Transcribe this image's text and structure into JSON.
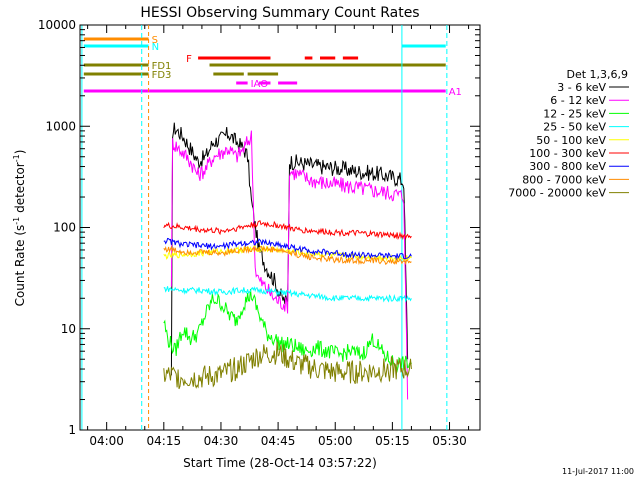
{
  "chart_data": {
    "type": "line",
    "title": "HESSI Observing Summary Count Rates",
    "xlabel": "Start Time (28-Oct-14 03:57:22)",
    "ylabel": "Count Rate (s",
    "ylabel_sup1": "-1",
    "ylabel_mid": " detector",
    "ylabel_sup2": "-1",
    "ylabel_end": ")",
    "footer_date": "11-Jul-2017 11:00",
    "x_unit": "minutes after 04:00",
    "xlim": [
      -7,
      98
    ],
    "ylim": [
      1,
      10000
    ],
    "yscale": "log",
    "xticks": [
      {
        "t": 0,
        "label": "04:00"
      },
      {
        "t": 15,
        "label": "04:15"
      },
      {
        "t": 30,
        "label": "04:30"
      },
      {
        "t": 45,
        "label": "04:45"
      },
      {
        "t": 60,
        "label": "05:00"
      },
      {
        "t": 75,
        "label": "05:15"
      },
      {
        "t": 90,
        "label": "05:30"
      }
    ],
    "yticks": [
      {
        "v": 1,
        "label": "1"
      },
      {
        "v": 10,
        "label": "10"
      },
      {
        "v": 100,
        "label": "100"
      },
      {
        "v": 1000,
        "label": "1000"
      },
      {
        "v": 10000,
        "label": "10000"
      }
    ],
    "legend_title": "Det 1,3,6,9",
    "legend_placement": "right",
    "series": [
      {
        "name": "3 - 6 keV",
        "color": "#000000",
        "points": [
          [
            17,
            3
          ],
          [
            17.3,
            900
          ],
          [
            18,
            950
          ],
          [
            20,
            800
          ],
          [
            22,
            600
          ],
          [
            24,
            450
          ],
          [
            26,
            500
          ],
          [
            28,
            700
          ],
          [
            30,
            750
          ],
          [
            32,
            850
          ],
          [
            34,
            700
          ],
          [
            36,
            600
          ],
          [
            37,
            500
          ],
          [
            38,
            180
          ],
          [
            40,
            60
          ],
          [
            42,
            40
          ],
          [
            44,
            30
          ],
          [
            46,
            20
          ],
          [
            47.5,
            18
          ],
          [
            48,
            450
          ],
          [
            50,
            440
          ],
          [
            53,
            420
          ],
          [
            56,
            400
          ],
          [
            59,
            390
          ],
          [
            62,
            380
          ],
          [
            65,
            360
          ],
          [
            68,
            350
          ],
          [
            71,
            340
          ],
          [
            74,
            320
          ],
          [
            77,
            300
          ],
          [
            78,
            280
          ],
          [
            79,
            5
          ]
        ]
      },
      {
        "name": "6 - 12 keV",
        "color": "#ff00ff",
        "points": [
          [
            17,
            30
          ],
          [
            17.3,
            700
          ],
          [
            18,
            650
          ],
          [
            20,
            550
          ],
          [
            22,
            450
          ],
          [
            24,
            330
          ],
          [
            26,
            380
          ],
          [
            28,
            500
          ],
          [
            30,
            550
          ],
          [
            32,
            600
          ],
          [
            34,
            500
          ],
          [
            36,
            600
          ],
          [
            37,
            700
          ],
          [
            38,
            800
          ],
          [
            39,
            40
          ],
          [
            40,
            30
          ],
          [
            42,
            25
          ],
          [
            44,
            20
          ],
          [
            46,
            18
          ],
          [
            47.5,
            17
          ],
          [
            48,
            360
          ],
          [
            50,
            340
          ],
          [
            53,
            300
          ],
          [
            56,
            280
          ],
          [
            59,
            270
          ],
          [
            62,
            260
          ],
          [
            65,
            250
          ],
          [
            68,
            240
          ],
          [
            71,
            230
          ],
          [
            74,
            220
          ],
          [
            77,
            210
          ],
          [
            78,
            200
          ],
          [
            79,
            2
          ]
        ]
      },
      {
        "name": "12 - 25 keV",
        "color": "#00ff00",
        "points": [
          [
            15,
            12
          ],
          [
            16,
            8
          ],
          [
            18,
            6
          ],
          [
            20,
            10
          ],
          [
            22,
            8
          ],
          [
            24,
            9
          ],
          [
            26,
            14
          ],
          [
            28,
            20
          ],
          [
            30,
            18
          ],
          [
            32,
            14
          ],
          [
            34,
            12
          ],
          [
            36,
            18
          ],
          [
            38,
            22
          ],
          [
            40,
            14
          ],
          [
            42,
            9
          ],
          [
            44,
            8
          ],
          [
            46,
            7
          ],
          [
            48,
            7
          ],
          [
            50,
            6.5
          ],
          [
            52,
            6
          ],
          [
            55,
            6.5
          ],
          [
            58,
            6
          ],
          [
            61,
            5.5
          ],
          [
            64,
            6
          ],
          [
            67,
            5.5
          ],
          [
            70,
            8
          ],
          [
            72,
            6
          ],
          [
            74,
            5
          ],
          [
            76,
            4.5
          ],
          [
            78,
            4.5
          ],
          [
            80,
            4.5
          ]
        ]
      },
      {
        "name": "25 - 50 keV",
        "color": "#00ffff",
        "points": [
          [
            15,
            25
          ],
          [
            20,
            24
          ],
          [
            25,
            24
          ],
          [
            30,
            23
          ],
          [
            35,
            24
          ],
          [
            40,
            24
          ],
          [
            45,
            23
          ],
          [
            50,
            22
          ],
          [
            55,
            21
          ],
          [
            60,
            20
          ],
          [
            65,
            20
          ],
          [
            70,
            20
          ],
          [
            75,
            20
          ],
          [
            80,
            20
          ]
        ]
      },
      {
        "name": "50 - 100 keV",
        "color": "#ffff00",
        "points": [
          [
            15,
            52
          ],
          [
            20,
            54
          ],
          [
            25,
            56
          ],
          [
            30,
            58
          ],
          [
            35,
            60
          ],
          [
            40,
            62
          ],
          [
            45,
            60
          ],
          [
            50,
            57
          ],
          [
            55,
            55
          ],
          [
            60,
            53
          ],
          [
            65,
            52
          ],
          [
            70,
            51
          ],
          [
            75,
            50
          ],
          [
            80,
            50
          ]
        ]
      },
      {
        "name": "100 - 300 keV",
        "color": "#ff0000",
        "points": [
          [
            15,
            105
          ],
          [
            20,
            100
          ],
          [
            25,
            95
          ],
          [
            30,
            92
          ],
          [
            35,
            100
          ],
          [
            40,
            110
          ],
          [
            45,
            105
          ],
          [
            50,
            95
          ],
          [
            55,
            92
          ],
          [
            60,
            90
          ],
          [
            65,
            88
          ],
          [
            70,
            86
          ],
          [
            75,
            84
          ],
          [
            80,
            82
          ]
        ]
      },
      {
        "name": "300 - 800 keV",
        "color": "#0000ff",
        "points": [
          [
            15,
            75
          ],
          [
            20,
            68
          ],
          [
            25,
            66
          ],
          [
            30,
            65
          ],
          [
            35,
            70
          ],
          [
            40,
            72
          ],
          [
            45,
            68
          ],
          [
            50,
            62
          ],
          [
            55,
            58
          ],
          [
            60,
            56
          ],
          [
            65,
            54
          ],
          [
            70,
            53
          ],
          [
            75,
            52
          ],
          [
            80,
            52
          ]
        ]
      },
      {
        "name": "800 - 7000 keV",
        "color": "#ff8c00",
        "points": [
          [
            15,
            62
          ],
          [
            20,
            58
          ],
          [
            25,
            57
          ],
          [
            30,
            56
          ],
          [
            35,
            60
          ],
          [
            40,
            62
          ],
          [
            45,
            60
          ],
          [
            50,
            54
          ],
          [
            55,
            50
          ],
          [
            60,
            48
          ],
          [
            65,
            47
          ],
          [
            70,
            47
          ],
          [
            75,
            46
          ],
          [
            80,
            46
          ]
        ]
      },
      {
        "name": "7000 - 20000 keV",
        "color": "#808000",
        "points": [
          [
            15,
            3.5
          ],
          [
            20,
            3.3
          ],
          [
            25,
            3.3
          ],
          [
            30,
            3.5
          ],
          [
            35,
            4.2
          ],
          [
            40,
            5.5
          ],
          [
            45,
            5.8
          ],
          [
            50,
            4.5
          ],
          [
            55,
            4
          ],
          [
            60,
            3.7
          ],
          [
            65,
            3.7
          ],
          [
            70,
            3.8
          ],
          [
            75,
            4
          ],
          [
            80,
            4
          ]
        ]
      }
    ],
    "flag_bars": [
      {
        "label": "S",
        "color": "#ff8c00",
        "y": 39,
        "segments": [
          [
            -6,
            11
          ]
        ]
      },
      {
        "label": "N",
        "color": "#00ffff",
        "y": 46,
        "segments": [
          [
            -6,
            11
          ],
          [
            77.5,
            89
          ]
        ]
      },
      {
        "label": "F",
        "color": "#ff0000",
        "y": 58,
        "segments": [
          [
            24,
            43
          ],
          [
            52,
            54
          ],
          [
            56,
            60
          ],
          [
            62,
            66
          ]
        ]
      },
      {
        "label": "FD1",
        "color": "#808000",
        "y": 65,
        "segments": [
          [
            -6,
            11
          ],
          [
            27,
            89
          ]
        ]
      },
      {
        "label": "FD3",
        "color": "#808000",
        "y": 74,
        "segments": [
          [
            -6,
            11
          ],
          [
            28,
            36
          ],
          [
            37,
            45
          ]
        ]
      },
      {
        "label": "IAO",
        "color": "#ff00ff",
        "y": 83,
        "segments": [
          [
            34,
            37
          ],
          [
            40,
            43
          ],
          [
            45,
            50
          ]
        ]
      },
      {
        "label": "A1",
        "color": "#ff00ff",
        "y": 91,
        "segments": [
          [
            -6,
            89
          ]
        ]
      }
    ]
  }
}
